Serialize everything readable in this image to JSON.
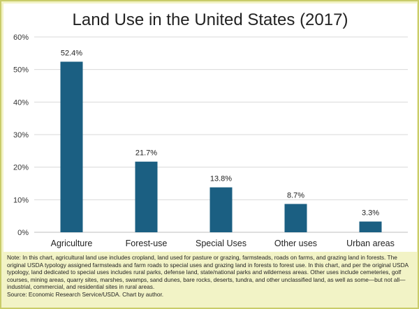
{
  "chart_data": {
    "type": "bar",
    "title": "Land Use in the United States (2017)",
    "categories": [
      "Agriculture",
      "Forest-use",
      "Special Uses",
      "Other uses",
      "Urban areas"
    ],
    "values": [
      52.4,
      21.7,
      13.8,
      8.7,
      3.3
    ],
    "data_labels": [
      "52.4%",
      "21.7%",
      "13.8%",
      "8.7%",
      "3.3%"
    ],
    "yticks": [
      0,
      10,
      20,
      30,
      40,
      50,
      60
    ],
    "ytick_labels": [
      "0%",
      "10%",
      "20%",
      "30%",
      "40%",
      "50%",
      "60%"
    ],
    "ylim": [
      0,
      60
    ],
    "xlabel": "",
    "ylabel": "",
    "grid": true,
    "bar_color": "#1b5f82",
    "grid_color": "#d9d9d9"
  },
  "note": {
    "text": "Note: In this chart, agricultural land use includes cropland, land used for pasture or grazing, farmsteads, roads on farms, and grazing land in forests. The original USDA typology assigned farmsteads and farm roads to special uses and grazing land in forests to forest use. In this chart, and per the original USDA typology, land dedicated to special uses includes rural parks, defense land, state/national parks and wilderness areas. Other uses include cemeteries, golf courses, mining areas, quarry sites, marshes, swamps, sand dunes, bare rocks, deserts, tundra, and other unclassified land, as well as some—but not all—industrial, commercial, and residential sites in rural areas.",
    "source": "Source: Economic Research Service/USDA. Chart by author."
  },
  "colors": {
    "frame_background": "#f2f3c6",
    "frame_border": "#c9cc6a"
  }
}
